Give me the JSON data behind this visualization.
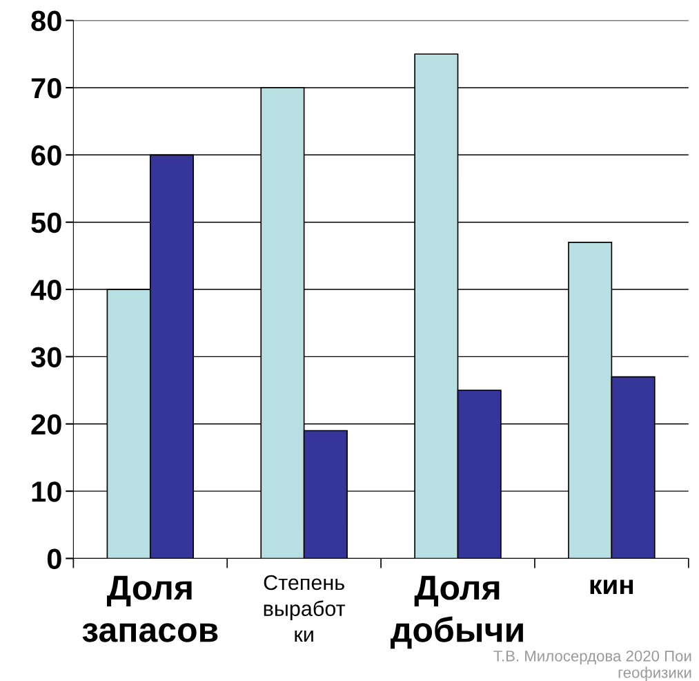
{
  "chart_data": {
    "type": "bar",
    "categories": [
      "Доля\nзапасов",
      "Степень\nвыработ\nки",
      "Доля\nдобычи",
      "кин"
    ],
    "series": [
      {
        "color": "#b8dfe2",
        "values": [
          40,
          70,
          75,
          47
        ]
      },
      {
        "color": "#35359a",
        "values": [
          60,
          19,
          25,
          27
        ]
      }
    ],
    "ylim": [
      0,
      80
    ],
    "yticks": [
      0,
      10,
      20,
      30,
      40,
      50,
      60,
      70,
      80
    ],
    "grid": "y",
    "legend": false,
    "annotations": [
      "Т.В. Милосердова 2020 Пои\nгеофизики"
    ]
  }
}
